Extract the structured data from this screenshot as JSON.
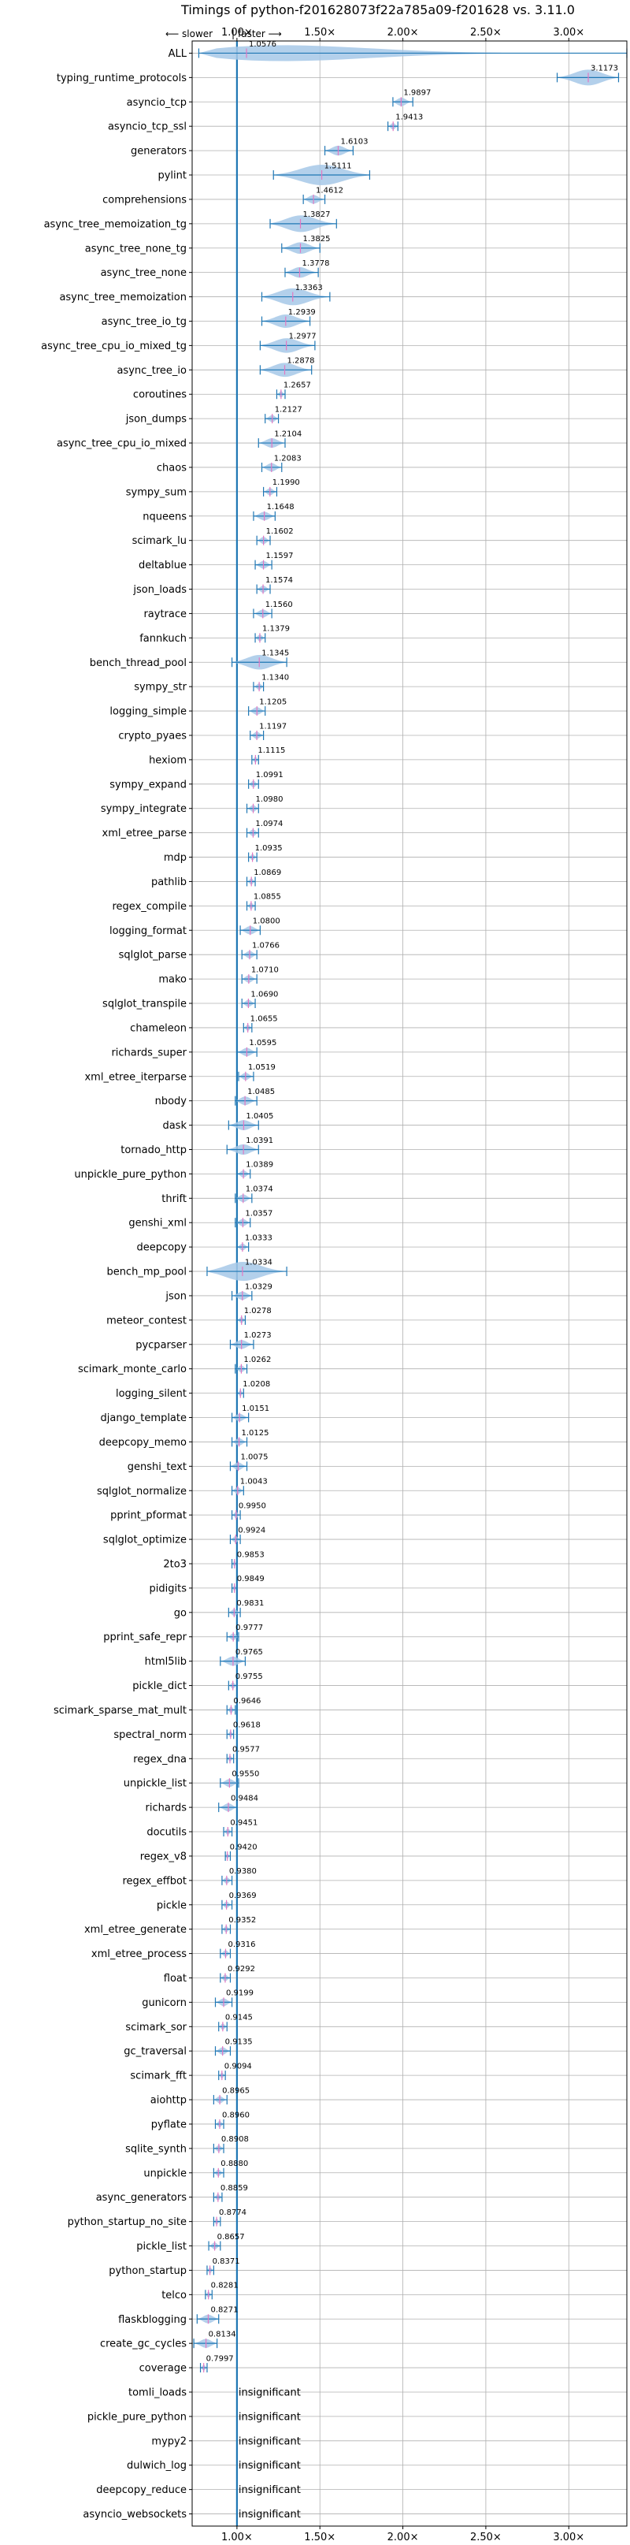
{
  "chart_data": {
    "type": "violin",
    "title": "Timings of python-f201628073f22a785a09-f201628 vs. 3.11.0",
    "direction_left": "⟵ slower",
    "direction_sep": "|",
    "direction_right": "faster ⟶",
    "xlim": [
      0.73,
      3.35
    ],
    "xticks": [
      1.0,
      1.5,
      2.0,
      2.5,
      3.0
    ],
    "xtick_labels": [
      "1.00×",
      "1.50×",
      "2.00×",
      "2.50×",
      "3.00×"
    ],
    "grid": true,
    "violin_color": "#a6c8e8",
    "line_color": "#1f77b4",
    "median_color": "#e377c2",
    "reference_line": 1.0,
    "benchmarks": [
      {
        "name": "ALL",
        "value": 1.0576,
        "label": "1.0576",
        "lo": 0.77,
        "hi": 3.35
      },
      {
        "name": "typing_runtime_protocols",
        "value": 3.1173,
        "label": "3.1173",
        "lo": 2.93,
        "hi": 3.3
      },
      {
        "name": "asyncio_tcp",
        "value": 1.9897,
        "label": "1.9897",
        "lo": 1.94,
        "hi": 2.06
      },
      {
        "name": "asyncio_tcp_ssl",
        "value": 1.9413,
        "label": "1.9413",
        "lo": 1.91,
        "hi": 1.97
      },
      {
        "name": "generators",
        "value": 1.6103,
        "label": "1.6103",
        "lo": 1.53,
        "hi": 1.7
      },
      {
        "name": "pylint",
        "value": 1.5111,
        "label": "1.5111",
        "lo": 1.22,
        "hi": 1.8
      },
      {
        "name": "comprehensions",
        "value": 1.4612,
        "label": "1.4612",
        "lo": 1.4,
        "hi": 1.53
      },
      {
        "name": "async_tree_memoization_tg",
        "value": 1.3827,
        "label": "1.3827",
        "lo": 1.2,
        "hi": 1.6
      },
      {
        "name": "async_tree_none_tg",
        "value": 1.3825,
        "label": "1.3825",
        "lo": 1.27,
        "hi": 1.5
      },
      {
        "name": "async_tree_none",
        "value": 1.3778,
        "label": "1.3778",
        "lo": 1.29,
        "hi": 1.49
      },
      {
        "name": "async_tree_memoization",
        "value": 1.3363,
        "label": "1.3363",
        "lo": 1.15,
        "hi": 1.56
      },
      {
        "name": "async_tree_io_tg",
        "value": 1.2939,
        "label": "1.2939",
        "lo": 1.15,
        "hi": 1.44
      },
      {
        "name": "async_tree_cpu_io_mixed_tg",
        "value": 1.2977,
        "label": "1.2977",
        "lo": 1.14,
        "hi": 1.47
      },
      {
        "name": "async_tree_io",
        "value": 1.2878,
        "label": "1.2878",
        "lo": 1.14,
        "hi": 1.45
      },
      {
        "name": "coroutines",
        "value": 1.2657,
        "label": "1.2657",
        "lo": 1.24,
        "hi": 1.29
      },
      {
        "name": "json_dumps",
        "value": 1.2127,
        "label": "1.2127",
        "lo": 1.17,
        "hi": 1.25
      },
      {
        "name": "async_tree_cpu_io_mixed",
        "value": 1.2104,
        "label": "1.2104",
        "lo": 1.13,
        "hi": 1.29
      },
      {
        "name": "chaos",
        "value": 1.2083,
        "label": "1.2083",
        "lo": 1.15,
        "hi": 1.27
      },
      {
        "name": "sympy_sum",
        "value": 1.199,
        "label": "1.1990",
        "lo": 1.16,
        "hi": 1.24
      },
      {
        "name": "nqueens",
        "value": 1.1648,
        "label": "1.1648",
        "lo": 1.1,
        "hi": 1.23
      },
      {
        "name": "scimark_lu",
        "value": 1.1602,
        "label": "1.1602",
        "lo": 1.12,
        "hi": 1.2
      },
      {
        "name": "deltablue",
        "value": 1.1597,
        "label": "1.1597",
        "lo": 1.11,
        "hi": 1.21
      },
      {
        "name": "json_loads",
        "value": 1.1574,
        "label": "1.1574",
        "lo": 1.12,
        "hi": 1.2
      },
      {
        "name": "raytrace",
        "value": 1.156,
        "label": "1.1560",
        "lo": 1.1,
        "hi": 1.21
      },
      {
        "name": "fannkuch",
        "value": 1.1379,
        "label": "1.1379",
        "lo": 1.11,
        "hi": 1.17
      },
      {
        "name": "bench_thread_pool",
        "value": 1.1345,
        "label": "1.1345",
        "lo": 0.97,
        "hi": 1.3
      },
      {
        "name": "sympy_str",
        "value": 1.134,
        "label": "1.1340",
        "lo": 1.1,
        "hi": 1.16
      },
      {
        "name": "logging_simple",
        "value": 1.1205,
        "label": "1.1205",
        "lo": 1.07,
        "hi": 1.17
      },
      {
        "name": "crypto_pyaes",
        "value": 1.1197,
        "label": "1.1197",
        "lo": 1.08,
        "hi": 1.16
      },
      {
        "name": "hexiom",
        "value": 1.1115,
        "label": "1.1115",
        "lo": 1.09,
        "hi": 1.13
      },
      {
        "name": "sympy_expand",
        "value": 1.0991,
        "label": "1.0991",
        "lo": 1.07,
        "hi": 1.13
      },
      {
        "name": "sympy_integrate",
        "value": 1.098,
        "label": "1.0980",
        "lo": 1.06,
        "hi": 1.13
      },
      {
        "name": "xml_etree_parse",
        "value": 1.0974,
        "label": "1.0974",
        "lo": 1.06,
        "hi": 1.13
      },
      {
        "name": "mdp",
        "value": 1.0935,
        "label": "1.0935",
        "lo": 1.07,
        "hi": 1.12
      },
      {
        "name": "pathlib",
        "value": 1.0869,
        "label": "1.0869",
        "lo": 1.06,
        "hi": 1.11
      },
      {
        "name": "regex_compile",
        "value": 1.0855,
        "label": "1.0855",
        "lo": 1.06,
        "hi": 1.11
      },
      {
        "name": "logging_format",
        "value": 1.08,
        "label": "1.0800",
        "lo": 1.02,
        "hi": 1.14
      },
      {
        "name": "sqlglot_parse",
        "value": 1.0766,
        "label": "1.0766",
        "lo": 1.03,
        "hi": 1.12
      },
      {
        "name": "mako",
        "value": 1.071,
        "label": "1.0710",
        "lo": 1.03,
        "hi": 1.12
      },
      {
        "name": "sqlglot_transpile",
        "value": 1.069,
        "label": "1.0690",
        "lo": 1.03,
        "hi": 1.11
      },
      {
        "name": "chameleon",
        "value": 1.0655,
        "label": "1.0655",
        "lo": 1.04,
        "hi": 1.09
      },
      {
        "name": "richards_super",
        "value": 1.0595,
        "label": "1.0595",
        "lo": 1.0,
        "hi": 1.12
      },
      {
        "name": "xml_etree_iterparse",
        "value": 1.0519,
        "label": "1.0519",
        "lo": 1.01,
        "hi": 1.1
      },
      {
        "name": "nbody",
        "value": 1.0485,
        "label": "1.0485",
        "lo": 0.99,
        "hi": 1.12
      },
      {
        "name": "dask",
        "value": 1.0405,
        "label": "1.0405",
        "lo": 0.95,
        "hi": 1.13
      },
      {
        "name": "tornado_http",
        "value": 1.0391,
        "label": "1.0391",
        "lo": 0.94,
        "hi": 1.13
      },
      {
        "name": "unpickle_pure_python",
        "value": 1.0389,
        "label": "1.0389",
        "lo": 1.0,
        "hi": 1.08
      },
      {
        "name": "thrift",
        "value": 1.0374,
        "label": "1.0374",
        "lo": 0.99,
        "hi": 1.09
      },
      {
        "name": "genshi_xml",
        "value": 1.0357,
        "label": "1.0357",
        "lo": 0.99,
        "hi": 1.08
      },
      {
        "name": "deepcopy",
        "value": 1.0333,
        "label": "1.0333",
        "lo": 1.0,
        "hi": 1.07
      },
      {
        "name": "bench_mp_pool",
        "value": 1.0334,
        "label": "1.0334",
        "lo": 0.82,
        "hi": 1.3
      },
      {
        "name": "json",
        "value": 1.0329,
        "label": "1.0329",
        "lo": 0.97,
        "hi": 1.09
      },
      {
        "name": "meteor_contest",
        "value": 1.0278,
        "label": "1.0278",
        "lo": 1.0,
        "hi": 1.05
      },
      {
        "name": "pycparser",
        "value": 1.0273,
        "label": "1.0273",
        "lo": 0.96,
        "hi": 1.1
      },
      {
        "name": "scimark_monte_carlo",
        "value": 1.0262,
        "label": "1.0262",
        "lo": 0.99,
        "hi": 1.06
      },
      {
        "name": "logging_silent",
        "value": 1.0208,
        "label": "1.0208",
        "lo": 1.0,
        "hi": 1.04
      },
      {
        "name": "django_template",
        "value": 1.0151,
        "label": "1.0151",
        "lo": 0.97,
        "hi": 1.07
      },
      {
        "name": "deepcopy_memo",
        "value": 1.0125,
        "label": "1.0125",
        "lo": 0.97,
        "hi": 1.06
      },
      {
        "name": "genshi_text",
        "value": 1.0075,
        "label": "1.0075",
        "lo": 0.96,
        "hi": 1.06
      },
      {
        "name": "sqlglot_normalize",
        "value": 1.0043,
        "label": "1.0043",
        "lo": 0.97,
        "hi": 1.04
      },
      {
        "name": "pprint_pformat",
        "value": 0.995,
        "label": "0.9950",
        "lo": 0.97,
        "hi": 1.02
      },
      {
        "name": "sqlglot_optimize",
        "value": 0.9924,
        "label": "0.9924",
        "lo": 0.96,
        "hi": 1.02
      },
      {
        "name": "2to3",
        "value": 0.9853,
        "label": "0.9853",
        "lo": 0.97,
        "hi": 1.0
      },
      {
        "name": "pidigits",
        "value": 0.9849,
        "label": "0.9849",
        "lo": 0.97,
        "hi": 1.0
      },
      {
        "name": "go",
        "value": 0.9831,
        "label": "0.9831",
        "lo": 0.95,
        "hi": 1.02
      },
      {
        "name": "pprint_safe_repr",
        "value": 0.9777,
        "label": "0.9777",
        "lo": 0.94,
        "hi": 1.01
      },
      {
        "name": "html5lib",
        "value": 0.9765,
        "label": "0.9765",
        "lo": 0.9,
        "hi": 1.05
      },
      {
        "name": "pickle_dict",
        "value": 0.9755,
        "label": "0.9755",
        "lo": 0.95,
        "hi": 1.0
      },
      {
        "name": "scimark_sparse_mat_mult",
        "value": 0.9646,
        "label": "0.9646",
        "lo": 0.94,
        "hi": 0.99
      },
      {
        "name": "spectral_norm",
        "value": 0.9618,
        "label": "0.9618",
        "lo": 0.94,
        "hi": 0.98
      },
      {
        "name": "regex_dna",
        "value": 0.9577,
        "label": "0.9577",
        "lo": 0.94,
        "hi": 0.98
      },
      {
        "name": "unpickle_list",
        "value": 0.955,
        "label": "0.9550",
        "lo": 0.9,
        "hi": 1.01
      },
      {
        "name": "richards",
        "value": 0.9484,
        "label": "0.9484",
        "lo": 0.89,
        "hi": 1.0
      },
      {
        "name": "docutils",
        "value": 0.9451,
        "label": "0.9451",
        "lo": 0.92,
        "hi": 0.97
      },
      {
        "name": "regex_v8",
        "value": 0.942,
        "label": "0.9420",
        "lo": 0.93,
        "hi": 0.96
      },
      {
        "name": "regex_effbot",
        "value": 0.938,
        "label": "0.9380",
        "lo": 0.91,
        "hi": 0.97
      },
      {
        "name": "pickle",
        "value": 0.9369,
        "label": "0.9369",
        "lo": 0.91,
        "hi": 0.97
      },
      {
        "name": "xml_etree_generate",
        "value": 0.9352,
        "label": "0.9352",
        "lo": 0.91,
        "hi": 0.96
      },
      {
        "name": "xml_etree_process",
        "value": 0.9316,
        "label": "0.9316",
        "lo": 0.9,
        "hi": 0.96
      },
      {
        "name": "float",
        "value": 0.9292,
        "label": "0.9292",
        "lo": 0.9,
        "hi": 0.96
      },
      {
        "name": "gunicorn",
        "value": 0.9199,
        "label": "0.9199",
        "lo": 0.87,
        "hi": 0.97
      },
      {
        "name": "scimark_sor",
        "value": 0.9145,
        "label": "0.9145",
        "lo": 0.89,
        "hi": 0.94
      },
      {
        "name": "gc_traversal",
        "value": 0.9135,
        "label": "0.9135",
        "lo": 0.87,
        "hi": 0.96
      },
      {
        "name": "scimark_fft",
        "value": 0.9094,
        "label": "0.9094",
        "lo": 0.89,
        "hi": 0.93
      },
      {
        "name": "aiohttp",
        "value": 0.8965,
        "label": "0.8965",
        "lo": 0.86,
        "hi": 0.94
      },
      {
        "name": "pyflate",
        "value": 0.896,
        "label": "0.8960",
        "lo": 0.87,
        "hi": 0.92
      },
      {
        "name": "sqlite_synth",
        "value": 0.8908,
        "label": "0.8908",
        "lo": 0.86,
        "hi": 0.92
      },
      {
        "name": "unpickle",
        "value": 0.888,
        "label": "0.8880",
        "lo": 0.86,
        "hi": 0.92
      },
      {
        "name": "async_generators",
        "value": 0.8859,
        "label": "0.8859",
        "lo": 0.86,
        "hi": 0.91
      },
      {
        "name": "python_startup_no_site",
        "value": 0.8774,
        "label": "0.8774",
        "lo": 0.86,
        "hi": 0.9
      },
      {
        "name": "pickle_list",
        "value": 0.8657,
        "label": "0.8657",
        "lo": 0.83,
        "hi": 0.9
      },
      {
        "name": "python_startup",
        "value": 0.8371,
        "label": "0.8371",
        "lo": 0.82,
        "hi": 0.86
      },
      {
        "name": "telco",
        "value": 0.8281,
        "label": "0.8281",
        "lo": 0.81,
        "hi": 0.85
      },
      {
        "name": "flaskblogging",
        "value": 0.8271,
        "label": "0.8271",
        "lo": 0.76,
        "hi": 0.89
      },
      {
        "name": "create_gc_cycles",
        "value": 0.8134,
        "label": "0.8134",
        "lo": 0.74,
        "hi": 0.88
      },
      {
        "name": "coverage",
        "value": 0.7997,
        "label": "0.7997",
        "lo": 0.78,
        "hi": 0.82
      }
    ],
    "insignificant": [
      {
        "name": "tomli_loads",
        "label": "insignificant"
      },
      {
        "name": "pickle_pure_python",
        "label": "insignificant"
      },
      {
        "name": "mypy2",
        "label": "insignificant"
      },
      {
        "name": "dulwich_log",
        "label": "insignificant"
      },
      {
        "name": "deepcopy_reduce",
        "label": "insignificant"
      },
      {
        "name": "asyncio_websockets",
        "label": "insignificant"
      }
    ]
  }
}
